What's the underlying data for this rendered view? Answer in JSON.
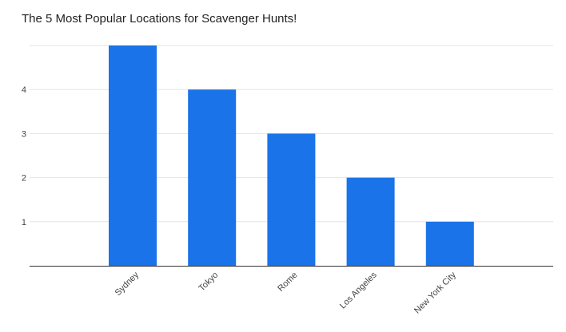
{
  "chart_data": {
    "type": "bar",
    "title": "The 5 Most Popular Locations for Scavenger Hunts!",
    "xlabel": "",
    "ylabel": "",
    "categories": [
      "Sydney",
      "Tokyo",
      "Rome",
      "Los Angeles",
      "New York City"
    ],
    "series": [
      {
        "values": [
          5,
          4,
          3,
          2,
          1
        ],
        "color": "#1a73e8"
      }
    ],
    "ylim": [
      0,
      5
    ],
    "yticks": [
      1,
      2,
      3,
      4
    ],
    "grid": true,
    "legend": "none"
  }
}
